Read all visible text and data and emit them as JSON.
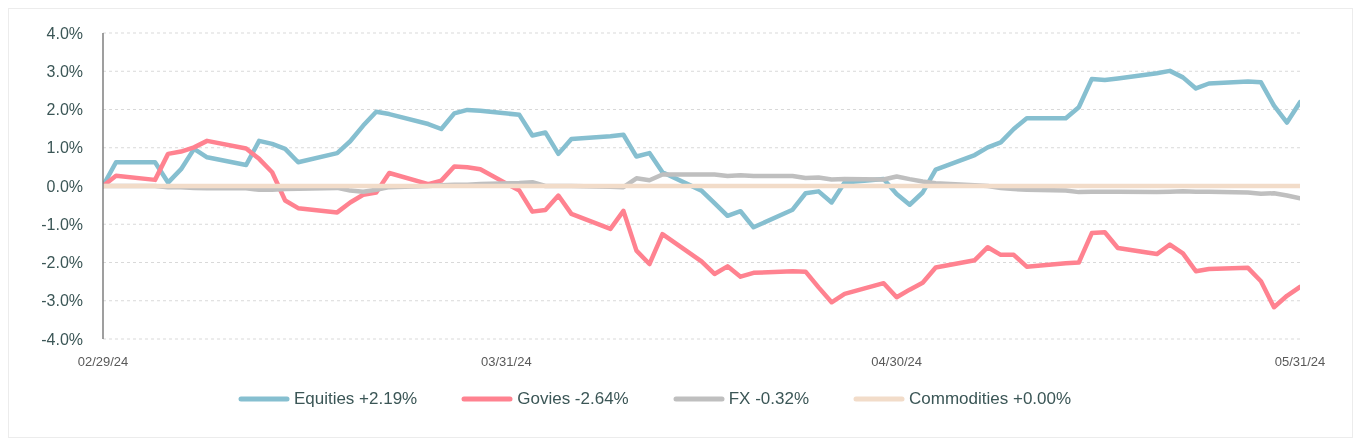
{
  "chart_data": {
    "type": "line",
    "x": [
      "2024-02-29",
      "2024-03-01",
      "2024-03-04",
      "2024-03-05",
      "2024-03-06",
      "2024-03-07",
      "2024-03-08",
      "2024-03-11",
      "2024-03-12",
      "2024-03-13",
      "2024-03-14",
      "2024-03-15",
      "2024-03-18",
      "2024-03-19",
      "2024-03-20",
      "2024-03-21",
      "2024-03-22",
      "2024-03-25",
      "2024-03-26",
      "2024-03-27",
      "2024-03-28",
      "2024-03-29",
      "2024-04-01",
      "2024-04-02",
      "2024-04-03",
      "2024-04-04",
      "2024-04-05",
      "2024-04-08",
      "2024-04-09",
      "2024-04-10",
      "2024-04-11",
      "2024-04-12",
      "2024-04-15",
      "2024-04-16",
      "2024-04-17",
      "2024-04-18",
      "2024-04-19",
      "2024-04-22",
      "2024-04-23",
      "2024-04-24",
      "2024-04-25",
      "2024-04-26",
      "2024-04-29",
      "2024-04-30",
      "2024-05-01",
      "2024-05-02",
      "2024-05-03",
      "2024-05-06",
      "2024-05-07",
      "2024-05-08",
      "2024-05-09",
      "2024-05-10",
      "2024-05-13",
      "2024-05-14",
      "2024-05-15",
      "2024-05-16",
      "2024-05-17",
      "2024-05-20",
      "2024-05-21",
      "2024-05-22",
      "2024-05-23",
      "2024-05-24",
      "2024-05-27",
      "2024-05-28",
      "2024-05-29",
      "2024-05-30",
      "2024-05-31"
    ],
    "series": [
      {
        "name": "Equities +2.19%",
        "color": "#86bfd0",
        "values": [
          0.0,
          0.62,
          0.62,
          0.09,
          0.44,
          0.97,
          0.75,
          0.55,
          1.18,
          1.1,
          0.97,
          0.62,
          0.86,
          1.17,
          1.58,
          1.94,
          1.88,
          1.62,
          1.49,
          1.9,
          1.99,
          1.97,
          1.86,
          1.32,
          1.4,
          0.84,
          1.23,
          1.3,
          1.34,
          0.77,
          0.86,
          0.36,
          -0.12,
          -0.45,
          -0.78,
          -0.66,
          -1.08,
          -0.62,
          -0.19,
          -0.14,
          -0.43,
          0.09,
          0.18,
          -0.21,
          -0.49,
          -0.17,
          0.43,
          0.81,
          1.01,
          1.14,
          1.49,
          1.77,
          1.77,
          2.06,
          2.8,
          2.77,
          2.81,
          2.95,
          3.01,
          2.84,
          2.55,
          2.68,
          2.73,
          2.71,
          2.1,
          1.66,
          2.19
        ]
      },
      {
        "name": "Govies -2.64%",
        "color": "#ff8290",
        "values": [
          0.0,
          0.27,
          0.16,
          0.84,
          0.9,
          1.01,
          1.18,
          0.98,
          0.71,
          0.36,
          -0.38,
          -0.58,
          -0.69,
          -0.43,
          -0.23,
          -0.17,
          0.34,
          0.05,
          0.14,
          0.51,
          0.49,
          0.44,
          -0.12,
          -0.67,
          -0.63,
          -0.25,
          -0.73,
          -1.12,
          -0.65,
          -1.69,
          -2.04,
          -1.26,
          -1.97,
          -2.3,
          -2.1,
          -2.37,
          -2.27,
          -2.23,
          -2.24,
          -2.65,
          -3.04,
          -2.82,
          -2.54,
          -2.91,
          -2.71,
          -2.53,
          -2.13,
          -1.94,
          -1.6,
          -1.8,
          -1.8,
          -2.11,
          -2.02,
          -2.0,
          -1.23,
          -1.21,
          -1.62,
          -1.78,
          -1.53,
          -1.76,
          -2.23,
          -2.17,
          -2.14,
          -2.49,
          -3.17,
          -2.87,
          -2.64
        ]
      },
      {
        "name": "FX -0.32%",
        "color": "#bfbfbf",
        "values": [
          0,
          0,
          0,
          -0.03,
          -0.03,
          -0.05,
          -0.06,
          -0.06,
          -0.1,
          -0.1,
          -0.08,
          -0.07,
          -0.05,
          -0.12,
          -0.15,
          -0.1,
          -0.03,
          0.0,
          0.02,
          0.03,
          0.03,
          0.05,
          0.08,
          0.1,
          0.0,
          0.0,
          0.0,
          -0.02,
          -0.03,
          0.2,
          0.15,
          0.3,
          0.3,
          0.3,
          0.26,
          0.28,
          0.26,
          0.26,
          0.21,
          0.22,
          0.17,
          0.18,
          0.17,
          0.25,
          0.18,
          0.12,
          0.07,
          0.02,
          0.0,
          -0.05,
          -0.08,
          -0.1,
          -0.12,
          -0.16,
          -0.15,
          -0.15,
          -0.15,
          -0.16,
          -0.15,
          -0.14,
          -0.15,
          -0.15,
          -0.17,
          -0.2,
          -0.19,
          -0.25,
          -0.32
        ]
      },
      {
        "name": "Commodities +0.00%",
        "color": "#f2dcc9",
        "values": [
          0,
          0,
          0,
          0,
          0,
          0,
          0,
          0,
          0,
          0,
          0,
          0,
          0,
          0,
          0,
          0,
          0,
          0,
          0,
          0,
          0,
          0,
          0,
          0,
          0,
          0,
          0,
          0,
          0,
          0,
          0,
          0,
          0,
          0,
          0,
          0,
          0,
          0,
          0,
          0,
          0,
          0,
          0,
          0,
          0,
          0,
          0,
          0,
          0,
          0,
          0,
          0,
          0,
          0,
          0,
          0,
          0,
          0,
          0,
          0,
          0,
          0,
          0,
          0,
          0,
          0,
          0
        ]
      }
    ],
    "xlim": [
      "2024-02-29",
      "2024-05-31"
    ],
    "xticks": [
      {
        "value": "2024-02-29",
        "label": "02/29/24"
      },
      {
        "value": "2024-03-31",
        "label": "03/31/24"
      },
      {
        "value": "2024-04-30",
        "label": "04/30/24"
      },
      {
        "value": "2024-05-31",
        "label": "05/31/24"
      }
    ],
    "ylim": [
      -4,
      4
    ],
    "yticks": [
      {
        "value": -4,
        "label": "-4.0%"
      },
      {
        "value": -3,
        "label": "-3.0%"
      },
      {
        "value": -2,
        "label": "-2.0%"
      },
      {
        "value": -1,
        "label": "-1.0%"
      },
      {
        "value": 0,
        "label": "0.0%"
      },
      {
        "value": 1,
        "label": "1.0%"
      },
      {
        "value": 2,
        "label": "2.0%"
      },
      {
        "value": 3,
        "label": "3.0%"
      },
      {
        "value": 4,
        "label": "4.0%"
      }
    ],
    "grid": "y",
    "legend": "bottom"
  }
}
